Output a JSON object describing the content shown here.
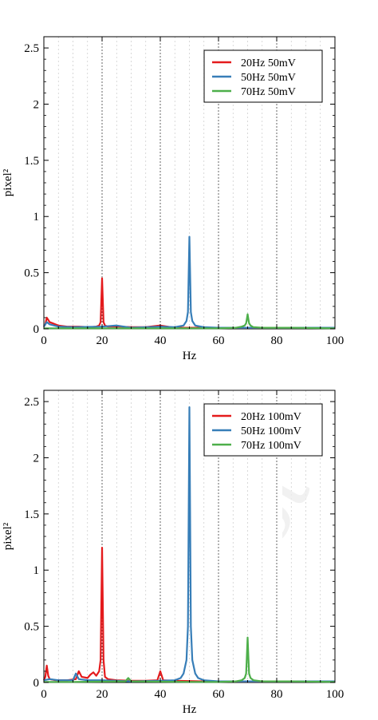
{
  "chart_data": [
    {
      "type": "line",
      "xlabel": "Hz",
      "ylabel": "pixel²",
      "xlim": [
        0,
        100
      ],
      "ylim": [
        0,
        2.6
      ],
      "xticks": [
        "0",
        "20",
        "40",
        "60",
        "80",
        "100"
      ],
      "yticks": [
        "0",
        "0.5",
        "1",
        "1.5",
        "2",
        "2.5"
      ],
      "grid": "vertical dashed",
      "legend_position": "top-right",
      "series": [
        {
          "name": "20Hz 50mV",
          "color": "#e41a1c",
          "x": [
            0,
            0.5,
            1,
            1.5,
            2,
            3,
            4,
            5,
            8,
            12,
            16,
            18,
            19,
            19.5,
            20,
            20.5,
            21,
            22,
            26,
            30,
            35,
            40,
            45,
            55,
            62,
            70,
            80,
            90,
            100
          ],
          "y": [
            0.02,
            0.04,
            0.1,
            0.08,
            0.06,
            0.05,
            0.04,
            0.03,
            0.02,
            0.02,
            0.015,
            0.02,
            0.03,
            0.06,
            0.45,
            0.06,
            0.03,
            0.02,
            0.02,
            0.015,
            0.015,
            0.03,
            0.01,
            0.01,
            0.01,
            0.01,
            0.01,
            0.01,
            0.01
          ]
        },
        {
          "name": "50Hz 50mV",
          "color": "#377eb8",
          "x": [
            0,
            1,
            2,
            5,
            10,
            20,
            25,
            30,
            40,
            45,
            48,
            49,
            49.5,
            50,
            50.5,
            51,
            52,
            55,
            60,
            70,
            80,
            90,
            100
          ],
          "y": [
            0.02,
            0.06,
            0.04,
            0.02,
            0.015,
            0.02,
            0.03,
            0.01,
            0.02,
            0.015,
            0.03,
            0.07,
            0.15,
            0.82,
            0.15,
            0.07,
            0.03,
            0.015,
            0.01,
            0.01,
            0.01,
            0.01,
            0.01
          ]
        },
        {
          "name": "70Hz 50mV",
          "color": "#4daf4a",
          "x": [
            0,
            10,
            30,
            50,
            60,
            66,
            68,
            69,
            69.5,
            70,
            70.5,
            71,
            72,
            75,
            85,
            100
          ],
          "y": [
            0.005,
            0.005,
            0.005,
            0.005,
            0.005,
            0.01,
            0.02,
            0.03,
            0.05,
            0.13,
            0.05,
            0.03,
            0.015,
            0.01,
            0.01,
            0.005
          ]
        }
      ]
    },
    {
      "type": "line",
      "xlabel": "Hz",
      "ylabel": "pixel²",
      "xlim": [
        0,
        100
      ],
      "ylim": [
        0,
        2.6
      ],
      "xticks": [
        "0",
        "20",
        "40",
        "60",
        "80",
        "100"
      ],
      "yticks": [
        "0",
        "0.5",
        "1",
        "1.5",
        "2",
        "2.5"
      ],
      "grid": "vertical dashed",
      "legend_position": "top-right",
      "series": [
        {
          "name": "20Hz 100mV",
          "color": "#e41a1c",
          "x": [
            0,
            0.5,
            1,
            1.5,
            2,
            4,
            8,
            11,
            12,
            13,
            15,
            16,
            17,
            18,
            19,
            19.5,
            20,
            20.5,
            21,
            22,
            25,
            30,
            35,
            39,
            40,
            41,
            45,
            55,
            70,
            85,
            100
          ],
          "y": [
            0.02,
            0.05,
            0.15,
            0.06,
            0.03,
            0.02,
            0.02,
            0.03,
            0.1,
            0.05,
            0.04,
            0.07,
            0.09,
            0.06,
            0.1,
            0.2,
            1.2,
            0.2,
            0.05,
            0.03,
            0.02,
            0.015,
            0.015,
            0.02,
            0.1,
            0.02,
            0.015,
            0.01,
            0.01,
            0.01,
            0.01
          ]
        },
        {
          "name": "50Hz 100mV",
          "color": "#377eb8",
          "x": [
            0,
            2,
            5,
            10,
            11,
            12,
            15,
            20,
            25,
            30,
            40,
            45,
            47,
            48,
            49,
            49.5,
            50,
            50.5,
            51,
            52,
            53,
            55,
            60,
            70,
            80,
            100
          ],
          "y": [
            0.02,
            0.03,
            0.02,
            0.02,
            0.08,
            0.03,
            0.02,
            0.02,
            0.015,
            0.01,
            0.015,
            0.02,
            0.04,
            0.08,
            0.2,
            0.5,
            2.45,
            0.5,
            0.2,
            0.08,
            0.04,
            0.02,
            0.01,
            0.01,
            0.01,
            0.01
          ]
        },
        {
          "name": "70Hz 100mV",
          "color": "#4daf4a",
          "x": [
            0,
            10,
            28,
            29,
            30,
            50,
            60,
            66,
            68,
            69,
            69.5,
            70,
            70.5,
            71,
            72,
            75,
            85,
            100
          ],
          "y": [
            0.005,
            0.005,
            0.01,
            0.04,
            0.01,
            0.005,
            0.005,
            0.01,
            0.02,
            0.04,
            0.08,
            0.4,
            0.08,
            0.04,
            0.02,
            0.01,
            0.01,
            0.005
          ]
        }
      ]
    }
  ]
}
